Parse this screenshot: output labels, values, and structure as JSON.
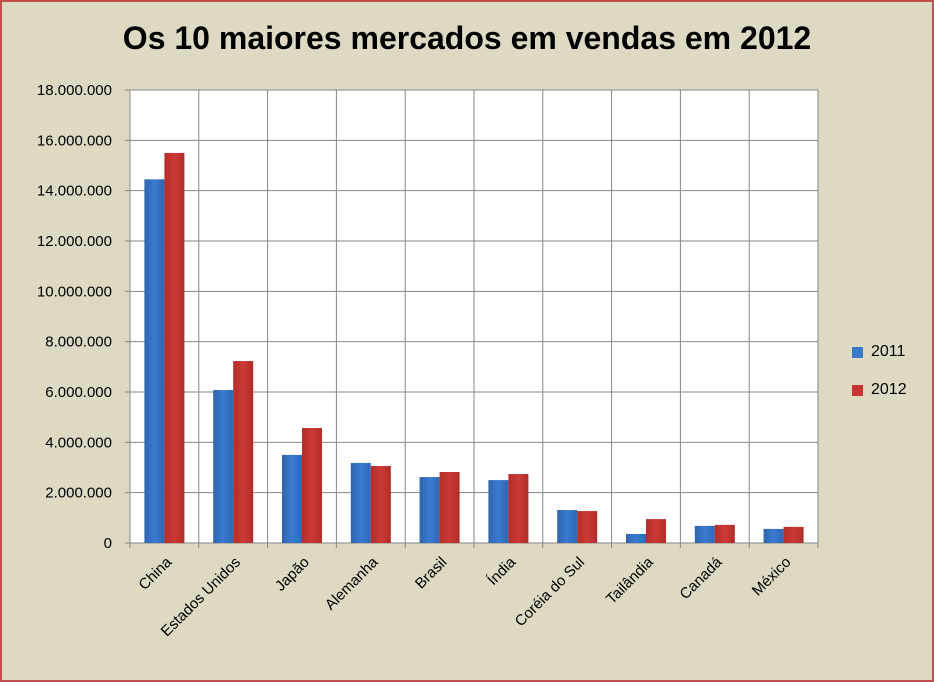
{
  "chart_data": {
    "type": "bar",
    "title": "Os 10 maiores mercados em vendas em 2012",
    "xlabel": "",
    "ylabel": "",
    "ylim": [
      0,
      18000000
    ],
    "yticks": [
      0,
      2000000,
      4000000,
      6000000,
      8000000,
      10000000,
      12000000,
      14000000,
      16000000,
      18000000
    ],
    "ytick_labels": [
      "0",
      "2.000.000",
      "4.000.000",
      "6.000.000",
      "8.000.000",
      "10.000.000",
      "12.000.000",
      "14.000.000",
      "16.000.000",
      "18.000.000"
    ],
    "categories": [
      "China",
      "Estados Unidos",
      "Japão",
      "Alemanha",
      "Brasil",
      "Índia",
      "Coréia do Sul",
      "Tailândia",
      "Canadá",
      "México"
    ],
    "series": [
      {
        "name": "2011",
        "color": "#3a78c9",
        "values": [
          14450000,
          6080000,
          3500000,
          3180000,
          2620000,
          2500000,
          1310000,
          360000,
          680000,
          560000
        ]
      },
      {
        "name": "2012",
        "color": "#c83431",
        "values": [
          15500000,
          7230000,
          4570000,
          3060000,
          2820000,
          2740000,
          1270000,
          950000,
          720000,
          640000
        ]
      }
    ],
    "grid": true,
    "legend_position": "right"
  }
}
